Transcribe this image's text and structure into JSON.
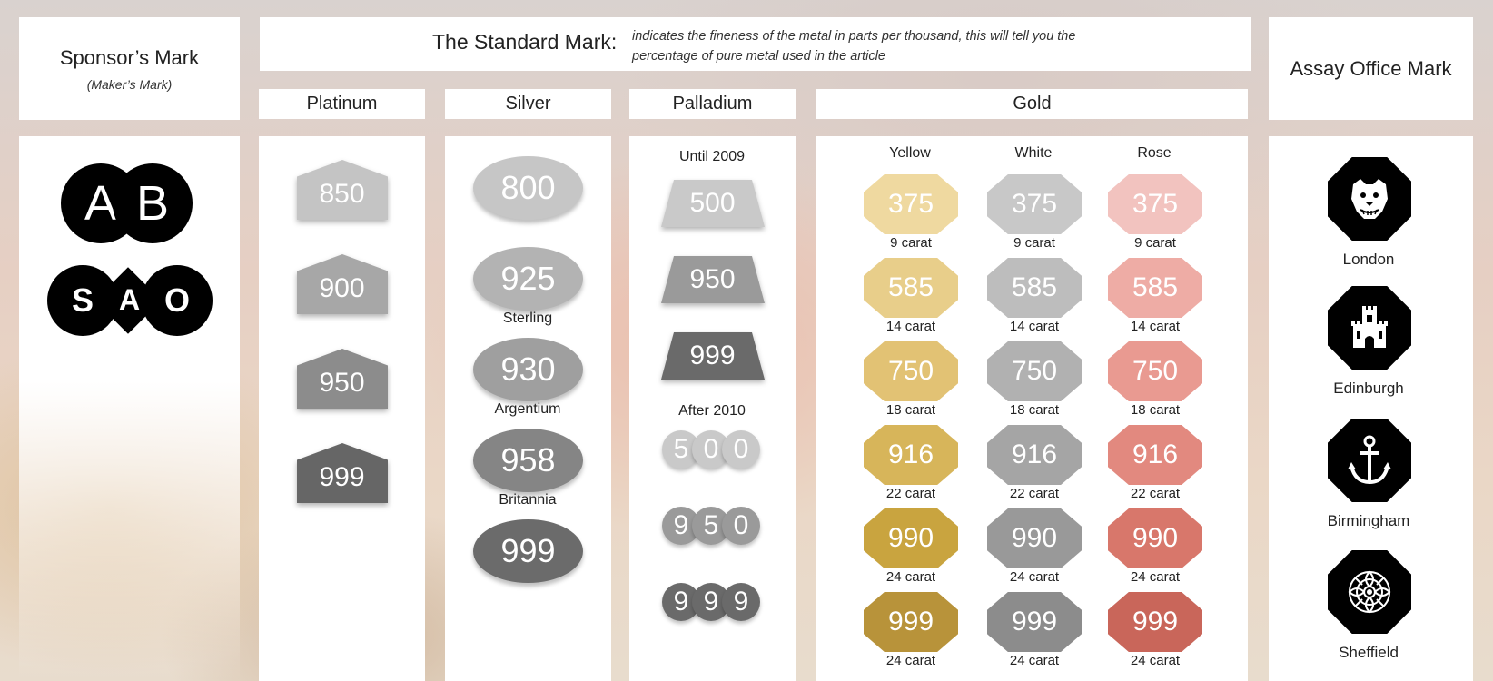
{
  "colors": {
    "platinum": [
      "#c4c4c4",
      "#a7a7a7",
      "#8c8c8c",
      "#666666"
    ],
    "silver": [
      "#c6c6c6",
      "#b3b3b3",
      "#9f9f9f",
      "#858585",
      "#6b6b6b"
    ],
    "palladium": [
      "#c9c9c9",
      "#9a9a9a",
      "#6a6a6a"
    ],
    "gold_yellow": [
      "#efd9a0",
      "#e8ce8a",
      "#e2c274",
      "#d7b55a",
      "#c9a43f",
      "#b8933a"
    ],
    "gold_white": [
      "#c8c8c8",
      "#bdbdbd",
      "#b1b1b1",
      "#a5a5a5",
      "#999999",
      "#8c8c8c"
    ],
    "gold_rose": [
      "#f2c3bf",
      "#eeaca5",
      "#e99a91",
      "#e2897f",
      "#d8776b",
      "#c9665a"
    ]
  },
  "sponsor": {
    "title": "Sponsor’s Mark",
    "subtitle": "(Maker’s Mark)",
    "mark1": [
      "A",
      "B"
    ],
    "mark2": [
      "S",
      "A",
      "O"
    ]
  },
  "standard": {
    "title": "The Standard  Mark:",
    "description": "indicates the fineness of the metal in parts per thousand, this will tell you the percentage of pure metal used in the article"
  },
  "assay": {
    "title": "Assay Office Mark",
    "offices": [
      {
        "name": "London",
        "icon": "leopard-head-icon"
      },
      {
        "name": "Edinburgh",
        "icon": "castle-icon"
      },
      {
        "name": "Birmingham",
        "icon": "anchor-icon"
      },
      {
        "name": "Sheffield",
        "icon": "rose-icon"
      }
    ]
  },
  "platinum": {
    "title": "Platinum",
    "marks": [
      "850",
      "900",
      "950",
      "999"
    ]
  },
  "silver": {
    "title": "Silver",
    "marks": [
      {
        "value": "800",
        "label": ""
      },
      {
        "value": "925",
        "label": "Sterling"
      },
      {
        "value": "930",
        "label": "Argentium"
      },
      {
        "value": "958",
        "label": "Britannia"
      },
      {
        "value": "999",
        "label": ""
      }
    ]
  },
  "palladium": {
    "title": "Palladium",
    "until_label": "Until 2009",
    "after_label": "After 2010",
    "until_marks": [
      "500",
      "950",
      "999"
    ],
    "after_marks": [
      [
        "5",
        "0",
        "0"
      ],
      [
        "9",
        "5",
        "0"
      ],
      [
        "9",
        "9",
        "9"
      ]
    ]
  },
  "gold": {
    "title": "Gold",
    "columns": [
      "Yellow",
      "White",
      "Rose"
    ],
    "marks": [
      {
        "value": "375",
        "carat": "9 carat"
      },
      {
        "value": "585",
        "carat": "14 carat"
      },
      {
        "value": "750",
        "carat": "18 carat"
      },
      {
        "value": "916",
        "carat": "22 carat"
      },
      {
        "value": "990",
        "carat": "24 carat"
      },
      {
        "value": "999",
        "carat": "24 carat"
      }
    ]
  }
}
